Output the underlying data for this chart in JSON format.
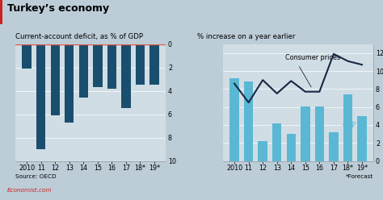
{
  "title": "Turkey’s economy",
  "left_subtitle": "Current-account deficit, as % of GDP",
  "right_subtitle": "% increase on a year earlier",
  "left_source": "Source: OECD",
  "right_footnote": "*Forecast",
  "economist_label": "Economist.com",
  "left_categories": [
    "2010",
    "11",
    "12",
    "13",
    "14",
    "15",
    "16",
    "17",
    "18*",
    "19*"
  ],
  "left_values": [
    -2.1,
    -9.0,
    -6.1,
    -6.7,
    -4.6,
    -3.7,
    -3.8,
    -5.5,
    -3.5,
    -3.5
  ],
  "right_categories": [
    "2010",
    "11",
    "12",
    "13",
    "14",
    "15",
    "16",
    "17",
    "18*",
    "19*"
  ],
  "gdp_values": [
    9.2,
    8.8,
    2.2,
    4.2,
    3.0,
    6.1,
    6.1,
    3.2,
    7.4,
    5.0
  ],
  "cpi_values": [
    8.6,
    6.5,
    9.0,
    7.5,
    8.9,
    7.7,
    7.7,
    11.9,
    11.1,
    10.7
  ],
  "left_bar_color": "#1a4e6e",
  "right_bar_color": "#5bb8d4",
  "cpi_line_color": "#1a2744",
  "zero_line_color": "#e05c4a",
  "bg_color": "#bccdd8",
  "plot_bg_color": "#d0dde5",
  "title_fontsize": 9,
  "subtitle_fontsize": 6.2,
  "tick_fontsize": 5.8,
  "source_fontsize": 5.2,
  "annot_fontsize": 5.8
}
